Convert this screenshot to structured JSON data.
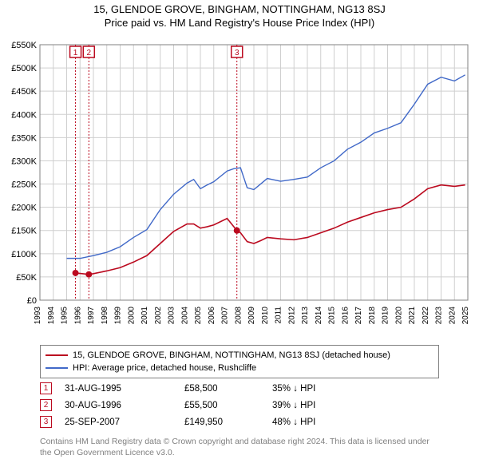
{
  "title": "15, GLENDOE GROVE, BINGHAM, NOTTINGHAM, NG13 8SJ",
  "subtitle": "Price paid vs. HM Land Registry's House Price Index (HPI)",
  "chart": {
    "type": "line",
    "background_color": "#ffffff",
    "plot_border_color": "#808080",
    "grid_color": "#cfcfcf",
    "x_years": [
      1993,
      1994,
      1995,
      1996,
      1997,
      1998,
      1999,
      2000,
      2001,
      2002,
      2003,
      2004,
      2005,
      2006,
      2007,
      2008,
      2009,
      2010,
      2011,
      2012,
      2013,
      2014,
      2015,
      2016,
      2017,
      2018,
      2019,
      2020,
      2021,
      2022,
      2023,
      2024,
      2025
    ],
    "y_min": 0,
    "y_max": 550000,
    "y_step": 50000,
    "y_labels": [
      "£0",
      "£50K",
      "£100K",
      "£150K",
      "£200K",
      "£250K",
      "£300K",
      "£350K",
      "£400K",
      "£450K",
      "£500K",
      "£550K"
    ],
    "series": [
      {
        "name": "15, GLENDOE GROVE, BINGHAM, NOTTINGHAM, NG13 8SJ (detached house)",
        "color": "#bb0a1f",
        "width": 1.6,
        "data": [
          [
            1995.66,
            58500
          ],
          [
            1996.66,
            55500
          ],
          [
            1997.0,
            57000
          ],
          [
            1998.0,
            63000
          ],
          [
            1999.0,
            70000
          ],
          [
            2000.0,
            82000
          ],
          [
            2001.0,
            96000
          ],
          [
            2002.0,
            122000
          ],
          [
            2003.0,
            148000
          ],
          [
            2004.0,
            164000
          ],
          [
            2004.5,
            164000
          ],
          [
            2005.0,
            155000
          ],
          [
            2005.5,
            158000
          ],
          [
            2006.0,
            162000
          ],
          [
            2007.0,
            176000
          ],
          [
            2007.73,
            149950
          ],
          [
            2008.0,
            145000
          ],
          [
            2008.5,
            126000
          ],
          [
            2009.0,
            122000
          ],
          [
            2009.5,
            128000
          ],
          [
            2010.0,
            135000
          ],
          [
            2011.0,
            132000
          ],
          [
            2012.0,
            130000
          ],
          [
            2013.0,
            135000
          ],
          [
            2014.0,
            145000
          ],
          [
            2015.0,
            155000
          ],
          [
            2016.0,
            168000
          ],
          [
            2017.0,
            178000
          ],
          [
            2018.0,
            188000
          ],
          [
            2019.0,
            195000
          ],
          [
            2020.0,
            200000
          ],
          [
            2021.0,
            218000
          ],
          [
            2022.0,
            240000
          ],
          [
            2023.0,
            248000
          ],
          [
            2024.0,
            245000
          ],
          [
            2024.8,
            248000
          ]
        ]
      },
      {
        "name": "HPI: Average price, detached house, Rushcliffe",
        "color": "#4169c8",
        "width": 1.4,
        "data": [
          [
            1995.0,
            90000
          ],
          [
            1996.0,
            90000
          ],
          [
            1997.0,
            96000
          ],
          [
            1998.0,
            103000
          ],
          [
            1999.0,
            115000
          ],
          [
            2000.0,
            135000
          ],
          [
            2001.0,
            152000
          ],
          [
            2002.0,
            195000
          ],
          [
            2003.0,
            228000
          ],
          [
            2004.0,
            252000
          ],
          [
            2004.5,
            260000
          ],
          [
            2005.0,
            240000
          ],
          [
            2005.5,
            248000
          ],
          [
            2006.0,
            255000
          ],
          [
            2007.0,
            278000
          ],
          [
            2007.5,
            283000
          ],
          [
            2008.0,
            285000
          ],
          [
            2008.5,
            242000
          ],
          [
            2009.0,
            238000
          ],
          [
            2009.5,
            250000
          ],
          [
            2010.0,
            262000
          ],
          [
            2011.0,
            256000
          ],
          [
            2012.0,
            260000
          ],
          [
            2013.0,
            265000
          ],
          [
            2014.0,
            285000
          ],
          [
            2015.0,
            300000
          ],
          [
            2016.0,
            325000
          ],
          [
            2017.0,
            340000
          ],
          [
            2018.0,
            360000
          ],
          [
            2019.0,
            370000
          ],
          [
            2020.0,
            382000
          ],
          [
            2021.0,
            422000
          ],
          [
            2022.0,
            465000
          ],
          [
            2023.0,
            480000
          ],
          [
            2024.0,
            472000
          ],
          [
            2024.8,
            485000
          ]
        ]
      }
    ],
    "markers": [
      {
        "n": "1",
        "x": 1995.66,
        "y": 58500
      },
      {
        "n": "2",
        "x": 1996.66,
        "y": 55500
      },
      {
        "n": "3",
        "x": 2007.73,
        "y": 149950
      }
    ],
    "marker_line_color": "#bb0a1f",
    "marker_line_dash": "2,2"
  },
  "legend": {
    "items": [
      {
        "color": "#bb0a1f",
        "label": "15, GLENDOE GROVE, BINGHAM, NOTTINGHAM, NG13 8SJ (detached house)"
      },
      {
        "color": "#4169c8",
        "label": "HPI: Average price, detached house, Rushcliffe"
      }
    ]
  },
  "marker_rows": [
    {
      "n": "1",
      "date": "31-AUG-1995",
      "price": "£58,500",
      "pct": "35% ↓ HPI"
    },
    {
      "n": "2",
      "date": "30-AUG-1996",
      "price": "£55,500",
      "pct": "39% ↓ HPI"
    },
    {
      "n": "3",
      "date": "25-SEP-2007",
      "price": "£149,950",
      "pct": "48% ↓ HPI"
    }
  ],
  "attribution": "Contains HM Land Registry data © Crown copyright and database right 2024. This data is licensed under the Open Government Licence v3.0."
}
